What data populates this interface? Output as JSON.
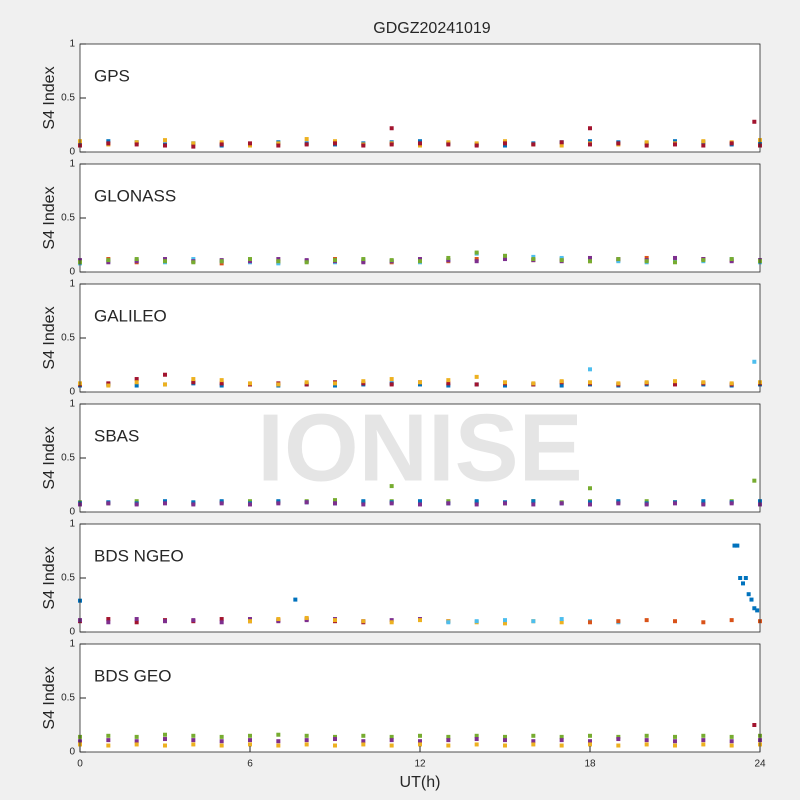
{
  "title": "GDGZ20241019",
  "watermark": "IONISE",
  "chart_data": [
    {
      "type": "scatter",
      "title": "GPS",
      "ylabel": "S4 Index",
      "xlim": [
        0,
        24
      ],
      "ylim": [
        0,
        1
      ],
      "yticks": [
        0,
        0.5,
        1
      ],
      "x": [
        0,
        1,
        2,
        3,
        4,
        5,
        6,
        7,
        8,
        9,
        10,
        11,
        12,
        13,
        14,
        15,
        16,
        17,
        18,
        19,
        20,
        21,
        22,
        23,
        24
      ],
      "series": [
        {
          "color": "#0072BD",
          "values": [
            0.08,
            0.1,
            0.09,
            0.07,
            0.08,
            0.06,
            0.07,
            0.09,
            0.08,
            0.07,
            0.08,
            0.09,
            0.1,
            0.08,
            0.07,
            0.06,
            0.08,
            0.09,
            0.1,
            0.09,
            0.08,
            0.1,
            0.09,
            0.07,
            0.08
          ]
        },
        {
          "color": "#EDB120",
          "values": [
            0.1,
            0.07,
            0.09,
            0.11,
            0.08,
            0.09,
            0.06,
            0.08,
            0.12,
            0.1,
            0.07,
            0.08,
            0.06,
            0.09,
            0.08,
            0.1,
            0.07,
            0.06,
            0.08,
            0.07,
            0.09,
            0.08,
            0.1,
            0.09,
            0.11
          ]
        },
        {
          "color": "#A2142F",
          "values": [
            0.06,
            0.08,
            0.07,
            0.06,
            0.05,
            0.07,
            0.08,
            0.06,
            0.07,
            0.08,
            0.06,
            0.07,
            0.08,
            0.07,
            0.06,
            0.08,
            0.07,
            0.09,
            0.07,
            0.08,
            0.06,
            0.07,
            0.06,
            0.08,
            0.06
          ]
        },
        {
          "color": "#A2142F",
          "x": [
            11,
            18,
            23.8
          ],
          "values": [
            0.22,
            0.22,
            0.28
          ]
        }
      ]
    },
    {
      "type": "scatter",
      "title": "GLONASS",
      "ylabel": "S4 Index",
      "xlim": [
        0,
        24
      ],
      "ylim": [
        0,
        1
      ],
      "yticks": [
        0,
        0.5,
        1
      ],
      "x": [
        0,
        1,
        2,
        3,
        4,
        5,
        6,
        7,
        8,
        9,
        10,
        11,
        12,
        13,
        14,
        15,
        16,
        17,
        18,
        19,
        20,
        21,
        22,
        23,
        24
      ],
      "series": [
        {
          "color": "#D95319",
          "values": [
            0.1,
            0.12,
            0.09,
            0.11,
            0.1,
            0.08,
            0.11,
            0.09,
            0.1,
            0.12,
            0.1,
            0.09,
            0.11,
            0.1,
            0.12,
            0.13,
            0.11,
            0.12,
            0.1,
            0.11,
            0.13,
            0.1,
            0.12,
            0.11,
            0.1
          ]
        },
        {
          "color": "#4DBEEE",
          "values": [
            0.08,
            0.1,
            0.11,
            0.09,
            0.12,
            0.1,
            0.09,
            0.08,
            0.1,
            0.09,
            0.11,
            0.1,
            0.09,
            0.11,
            0.17,
            0.12,
            0.14,
            0.13,
            0.12,
            0.1,
            0.09,
            0.11,
            0.1,
            0.12,
            0.09
          ]
        },
        {
          "color": "#7E2F8E",
          "values": [
            0.11,
            0.09,
            0.1,
            0.12,
            0.1,
            0.11,
            0.1,
            0.12,
            0.11,
            0.1,
            0.09,
            0.1,
            0.12,
            0.11,
            0.1,
            0.12,
            0.11,
            0.1,
            0.13,
            0.12,
            0.11,
            0.13,
            0.12,
            0.1,
            0.11
          ]
        },
        {
          "color": "#77AC30",
          "values": [
            0.09,
            0.11,
            0.12,
            0.1,
            0.09,
            0.1,
            0.12,
            0.1,
            0.09,
            0.11,
            0.12,
            0.11,
            0.1,
            0.13,
            0.18,
            0.15,
            0.12,
            0.11,
            0.1,
            0.12,
            0.1,
            0.09,
            0.11,
            0.12,
            0.1
          ]
        }
      ]
    },
    {
      "type": "scatter",
      "title": "GALILEO",
      "ylabel": "S4 Index",
      "xlim": [
        0,
        24
      ],
      "ylim": [
        0,
        1
      ],
      "yticks": [
        0,
        0.5,
        1
      ],
      "x": [
        0,
        1,
        2,
        3,
        4,
        5,
        6,
        7,
        8,
        9,
        10,
        11,
        12,
        13,
        14,
        15,
        16,
        17,
        18,
        19,
        20,
        21,
        22,
        23,
        24
      ],
      "series": [
        {
          "color": "#0072BD",
          "values": [
            0.06,
            0.07,
            0.06,
            0.07,
            0.08,
            0.06,
            0.07,
            0.06,
            0.07,
            0.06,
            0.07,
            0.08,
            0.07,
            0.06,
            0.07,
            0.06,
            0.07,
            0.06,
            0.07,
            0.06,
            0.07,
            0.08,
            0.07,
            0.06,
            0.07
          ]
        },
        {
          "color": "#A2142F",
          "values": [
            0.07,
            0.08,
            0.12,
            0.16,
            0.09,
            0.08,
            0.07,
            0.08,
            0.07,
            0.09,
            0.08,
            0.07,
            0.09,
            0.08,
            0.07,
            0.08,
            0.07,
            0.09,
            0.08,
            0.07,
            0.08,
            0.07,
            0.08,
            0.07,
            0.08
          ]
        },
        {
          "color": "#EDB120",
          "values": [
            0.08,
            0.06,
            0.09,
            0.07,
            0.12,
            0.11,
            0.08,
            0.07,
            0.09,
            0.08,
            0.1,
            0.12,
            0.09,
            0.11,
            0.14,
            0.09,
            0.08,
            0.1,
            0.09,
            0.08,
            0.09,
            0.1,
            0.09,
            0.08,
            0.09
          ]
        },
        {
          "color": "#4DBEEE",
          "x": [
            18,
            23.8
          ],
          "values": [
            0.21,
            0.28
          ]
        }
      ]
    },
    {
      "type": "scatter",
      "title": "SBAS",
      "ylabel": "S4 Index",
      "xlim": [
        0,
        24
      ],
      "ylim": [
        0,
        1
      ],
      "yticks": [
        0,
        0.5,
        1
      ],
      "x": [
        0,
        1,
        2,
        3,
        4,
        5,
        6,
        7,
        8,
        9,
        10,
        11,
        12,
        13,
        14,
        15,
        16,
        17,
        18,
        19,
        20,
        21,
        22,
        23,
        24
      ],
      "series": [
        {
          "color": "#77AC30",
          "values": [
            0.09,
            0.08,
            0.1,
            0.09,
            0.08,
            0.09,
            0.1,
            0.09,
            0.1,
            0.11,
            0.09,
            0.1,
            0.09,
            0.1,
            0.09,
            0.08,
            0.1,
            0.09,
            0.1,
            0.09,
            0.1,
            0.09,
            0.08,
            0.1,
            0.09
          ]
        },
        {
          "color": "#0072BD",
          "values": [
            0.08,
            0.09,
            0.08,
            0.1,
            0.09,
            0.1,
            0.08,
            0.1,
            0.09,
            0.08,
            0.1,
            0.09,
            0.1,
            0.08,
            0.1,
            0.09,
            0.1,
            0.08,
            0.09,
            0.1,
            0.08,
            0.09,
            0.1,
            0.09,
            0.1
          ]
        },
        {
          "color": "#7E2F8E",
          "values": [
            0.07,
            0.08,
            0.07,
            0.08,
            0.07,
            0.08,
            0.07,
            0.08,
            0.09,
            0.08,
            0.07,
            0.08,
            0.07,
            0.08,
            0.07,
            0.08,
            0.07,
            0.08,
            0.07,
            0.08,
            0.07,
            0.08,
            0.07,
            0.08,
            0.07
          ]
        },
        {
          "color": "#77AC30",
          "x": [
            11,
            18,
            23.8
          ],
          "values": [
            0.24,
            0.22,
            0.29
          ]
        }
      ]
    },
    {
      "type": "scatter",
      "title": "BDS NGEO",
      "ylabel": "S4 Index",
      "xlim": [
        0,
        24
      ],
      "ylim": [
        0,
        1
      ],
      "yticks": [
        0,
        0.5,
        1
      ],
      "x": [
        0,
        1,
        2,
        3,
        4,
        5,
        6,
        7,
        8,
        9,
        10,
        11,
        12,
        13,
        14,
        15,
        16,
        17,
        18,
        19,
        20,
        21,
        22,
        23,
        24
      ],
      "series": [
        {
          "color": "#A2142F",
          "values": [
            0.1,
            0.12,
            0.09,
            0.11,
            0.1,
            0.12,
            0.1,
            0.11,
            0.12,
            0.1,
            0.09,
            null,
            null,
            null,
            null,
            null,
            null,
            null,
            null,
            null,
            null,
            null,
            null,
            null,
            null
          ]
        },
        {
          "color": "#7E2F8E",
          "values": [
            0.11,
            0.09,
            0.12,
            0.1,
            0.11,
            0.09,
            0.12,
            0.1,
            0.11,
            0.12,
            0.1,
            0.11,
            0.12,
            0.1,
            null,
            null,
            null,
            null,
            null,
            null,
            null,
            null,
            null,
            null,
            null
          ]
        },
        {
          "color": "#EDB120",
          "values": [
            null,
            null,
            null,
            null,
            null,
            null,
            0.1,
            0.12,
            0.13,
            0.11,
            0.1,
            0.09,
            0.11,
            0.1,
            0.09,
            0.08,
            0.1,
            0.09,
            null,
            null,
            null,
            null,
            null,
            null,
            null
          ]
        },
        {
          "color": "#4DBEEE",
          "values": [
            null,
            null,
            null,
            null,
            null,
            null,
            null,
            null,
            null,
            null,
            null,
            null,
            null,
            0.09,
            0.1,
            0.11,
            0.1,
            0.12,
            0.1,
            0.09,
            null,
            null,
            null,
            null,
            null
          ]
        },
        {
          "color": "#D95319",
          "values": [
            null,
            null,
            null,
            null,
            null,
            null,
            null,
            null,
            null,
            null,
            null,
            null,
            null,
            null,
            null,
            null,
            null,
            null,
            0.09,
            0.1,
            0.11,
            0.1,
            0.09,
            0.11,
            0.1
          ]
        },
        {
          "color": "#0072BD",
          "x": [
            0,
            7.6,
            23.1,
            23.2,
            23.3,
            23.4,
            23.5,
            23.6,
            23.7,
            23.8,
            23.9
          ],
          "values": [
            0.29,
            0.3,
            0.8,
            0.8,
            0.5,
            0.45,
            0.5,
            0.35,
            0.3,
            0.22,
            0.2
          ]
        }
      ]
    },
    {
      "type": "scatter",
      "title": "BDS GEO",
      "ylabel": "S4 Index",
      "xlabel": "UT(h)",
      "xlim": [
        0,
        24
      ],
      "ylim": [
        0,
        1
      ],
      "yticks": [
        0,
        0.5,
        1
      ],
      "xticks": [
        0,
        6,
        12,
        18,
        24
      ],
      "x": [
        0,
        1,
        2,
        3,
        4,
        5,
        6,
        7,
        8,
        9,
        10,
        11,
        12,
        13,
        14,
        15,
        16,
        17,
        18,
        19,
        20,
        21,
        22,
        23,
        24
      ],
      "series": [
        {
          "color": "#77AC30",
          "values": [
            0.14,
            0.15,
            0.14,
            0.16,
            0.15,
            0.14,
            0.15,
            0.16,
            0.15,
            0.14,
            0.15,
            0.14,
            0.15,
            0.14,
            0.15,
            0.14,
            0.15,
            0.14,
            0.15,
            0.14,
            0.15,
            0.14,
            0.15,
            0.14,
            0.15
          ]
        },
        {
          "color": "#7E2F8E",
          "values": [
            0.1,
            0.11,
            0.1,
            0.12,
            0.11,
            0.1,
            0.11,
            0.1,
            0.11,
            0.12,
            0.1,
            0.11,
            0.1,
            0.11,
            0.12,
            0.11,
            0.1,
            0.11,
            0.1,
            0.12,
            0.11,
            0.1,
            0.11,
            0.1,
            0.11
          ]
        },
        {
          "color": "#EDB120",
          "values": [
            0.07,
            0.06,
            0.07,
            0.06,
            0.07,
            0.06,
            0.07,
            0.06,
            0.07,
            0.06,
            0.07,
            0.06,
            0.07,
            0.06,
            0.07,
            0.06,
            0.07,
            0.06,
            0.07,
            0.06,
            0.07,
            0.06,
            0.07,
            0.06,
            0.07
          ]
        },
        {
          "color": "#A2142F",
          "x": [
            23.8
          ],
          "values": [
            0.25
          ]
        }
      ]
    }
  ]
}
